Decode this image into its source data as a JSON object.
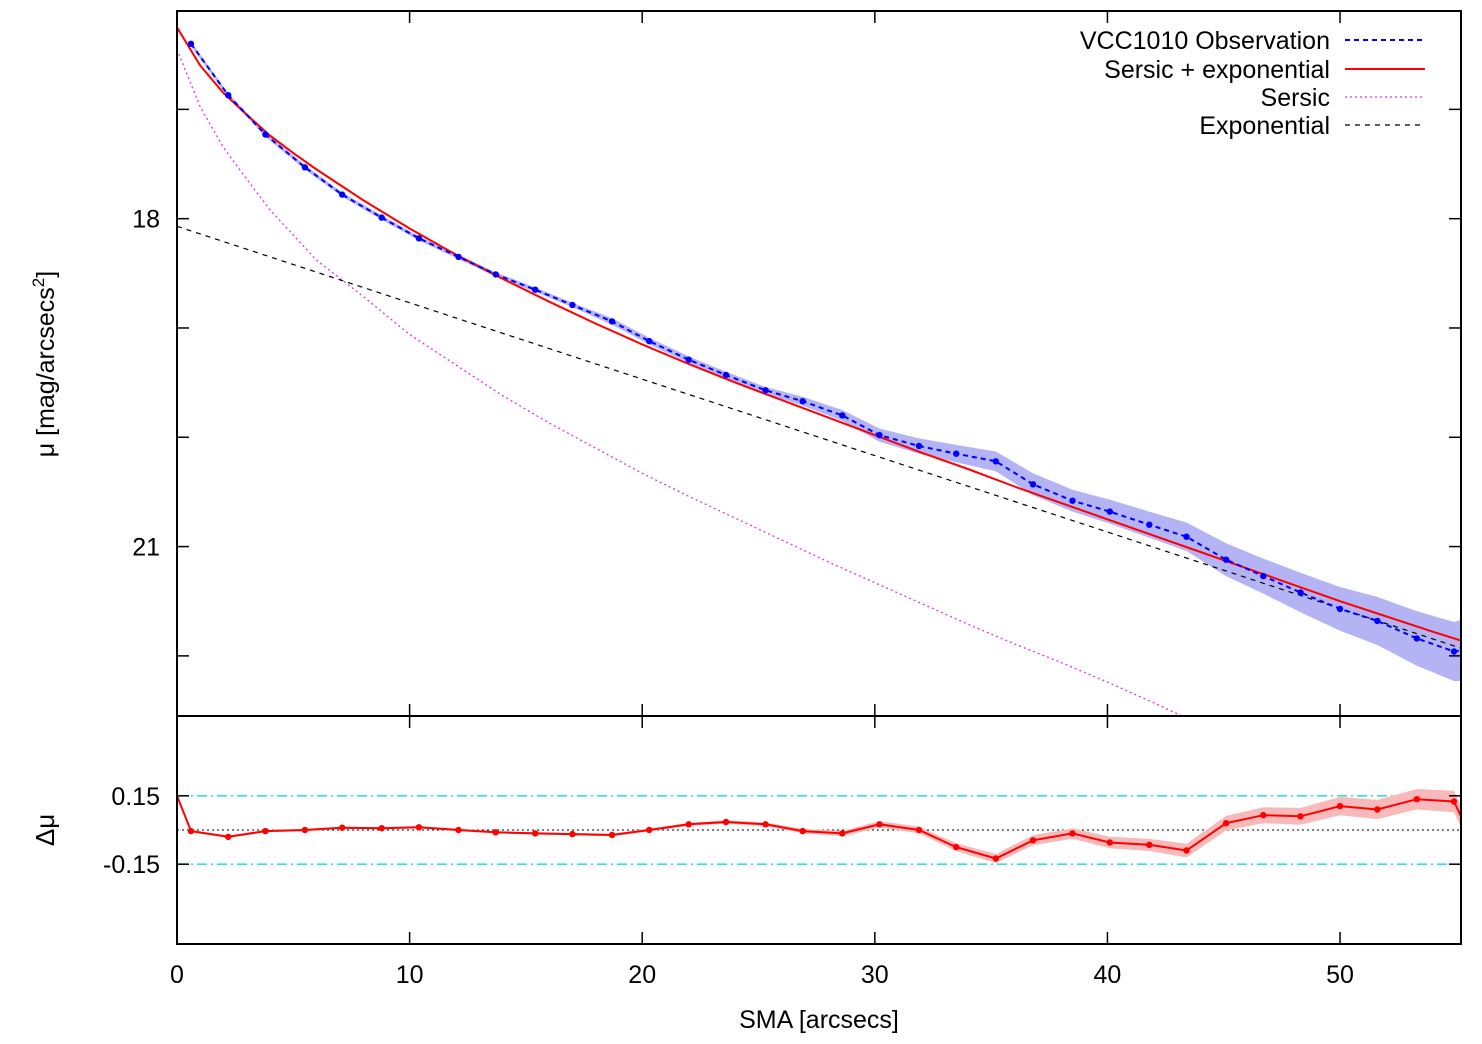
{
  "chart_data": [
    {
      "type": "line",
      "panel": "top",
      "ylabel_main": "μ [mag/arcsecs",
      "ylabel_sup": "2",
      "ylabel_tail": "]",
      "xlim": [
        0,
        55.2
      ],
      "ylim": [
        16.1,
        22.55
      ],
      "y_inverted": true,
      "xticks": [
        0,
        10,
        20,
        30,
        40,
        50
      ],
      "yticks_labeled": [
        18,
        21
      ],
      "yticks_minor": [
        17,
        19,
        20,
        22
      ],
      "legend_position": "top-right",
      "legend": [
        "VCC1010 Observation",
        "Sersic + exponential",
        "Sersic",
        "Exponential"
      ],
      "colors": {
        "observation": "#0000ff",
        "observation_band": "#b4b4f5",
        "fit": "#ff0000",
        "sersic": "#e033e0",
        "exponential": "#000000"
      },
      "series": [
        {
          "name": "VCC1010 Observation",
          "style": "dashed-dots",
          "x": [
            0.6,
            2.2,
            3.8,
            5.5,
            7.1,
            8.8,
            10.4,
            12.1,
            13.7,
            15.4,
            17.0,
            18.7,
            20.3,
            22.0,
            23.6,
            25.3,
            26.9,
            28.6,
            30.2,
            31.9,
            33.5,
            35.2,
            36.8,
            38.5,
            40.1,
            41.8,
            43.4,
            45.1,
            46.7,
            48.3,
            50.0,
            51.6,
            53.3,
            54.9,
            55.2
          ],
          "y": [
            16.4,
            16.87,
            17.23,
            17.53,
            17.78,
            17.99,
            18.18,
            18.35,
            18.51,
            18.65,
            18.79,
            18.94,
            19.12,
            19.29,
            19.43,
            19.57,
            19.67,
            19.8,
            19.98,
            20.08,
            20.15,
            20.22,
            20.43,
            20.58,
            20.68,
            20.8,
            20.91,
            21.12,
            21.27,
            21.42,
            21.57,
            21.68,
            21.84,
            21.96,
            21.95
          ],
          "err": [
            0.02,
            0.02,
            0.02,
            0.02,
            0.02,
            0.02,
            0.02,
            0.02,
            0.02,
            0.02,
            0.02,
            0.03,
            0.03,
            0.03,
            0.03,
            0.03,
            0.04,
            0.05,
            0.06,
            0.07,
            0.08,
            0.09,
            0.1,
            0.1,
            0.11,
            0.12,
            0.13,
            0.15,
            0.16,
            0.18,
            0.2,
            0.22,
            0.25,
            0.27,
            0.28
          ]
        },
        {
          "name": "Sersic + exponential",
          "style": "solid",
          "x": [
            0,
            1,
            2,
            3,
            4,
            5,
            6,
            8,
            10,
            12,
            14,
            16,
            18,
            20,
            22,
            24,
            26,
            28,
            30,
            32,
            34,
            36,
            38,
            40,
            42,
            44,
            46,
            48,
            50,
            52,
            54,
            55.2
          ],
          "y": [
            16.25,
            16.6,
            16.85,
            17.05,
            17.24,
            17.4,
            17.55,
            17.83,
            18.09,
            18.33,
            18.55,
            18.76,
            18.96,
            19.15,
            19.33,
            19.5,
            19.66,
            19.82,
            19.98,
            20.14,
            20.29,
            20.45,
            20.6,
            20.75,
            20.9,
            21.05,
            21.2,
            21.35,
            21.5,
            21.64,
            21.78,
            21.86
          ]
        },
        {
          "name": "Sersic",
          "style": "dotted",
          "x": [
            0,
            1,
            2,
            3,
            4,
            5,
            6,
            8,
            10,
            12,
            14,
            16,
            18,
            20,
            22,
            24,
            26,
            28,
            30,
            32,
            34,
            36,
            38,
            40,
            42,
            43.2
          ],
          "y": [
            16.45,
            16.98,
            17.35,
            17.64,
            17.92,
            18.15,
            18.38,
            18.71,
            19.06,
            19.34,
            19.62,
            19.87,
            20.1,
            20.33,
            20.54,
            20.74,
            20.94,
            21.14,
            21.33,
            21.52,
            21.71,
            21.89,
            22.06,
            22.24,
            22.43,
            22.55
          ]
        },
        {
          "name": "Exponential",
          "style": "dashed",
          "x": [
            0,
            55.2
          ],
          "y": [
            18.07,
            21.93
          ]
        }
      ]
    },
    {
      "type": "line",
      "panel": "bottom",
      "ylabel": "Δμ",
      "xlabel": "SMA [arcsecs]",
      "xlim": [
        0,
        55.2
      ],
      "ylim": [
        -0.5,
        0.5
      ],
      "xticks": [
        0,
        10,
        20,
        30,
        40,
        50
      ],
      "yticks": [
        0.15,
        -0.15
      ],
      "ytick_labels": [
        "0.15",
        "-0.15"
      ],
      "reference_lines": [
        {
          "y": 0.15,
          "style": "dash-dot",
          "color": "#33dddd"
        },
        {
          "y": -0.15,
          "style": "dash-dot",
          "color": "#33dddd"
        },
        {
          "y": 0,
          "style": "dotted",
          "color": "#000000"
        }
      ],
      "colors": {
        "residual": "#ff0000",
        "residual_band": "#f7b9b9"
      },
      "series": [
        {
          "x": [
            0,
            0.6,
            2.2,
            3.8,
            5.5,
            7.1,
            8.8,
            10.4,
            12.1,
            13.7,
            15.4,
            17.0,
            18.7,
            20.3,
            22.0,
            23.6,
            25.3,
            26.9,
            28.6,
            30.2,
            31.9,
            33.5,
            35.2,
            36.8,
            38.5,
            40.1,
            41.8,
            43.4,
            45.1,
            46.7,
            48.3,
            50.0,
            51.6,
            53.3,
            54.9,
            55.2
          ],
          "y": [
            0.15,
            -0.005,
            -0.03,
            -0.005,
            0.0,
            0.01,
            0.008,
            0.012,
            0.0,
            -0.01,
            -0.015,
            -0.018,
            -0.022,
            0.0,
            0.025,
            0.035,
            0.025,
            -0.005,
            -0.015,
            0.025,
            0.0,
            -0.075,
            -0.125,
            -0.045,
            -0.015,
            -0.055,
            -0.065,
            -0.09,
            0.03,
            0.065,
            0.06,
            0.105,
            0.09,
            0.135,
            0.125,
            0.06
          ],
          "err": [
            0.0,
            0.005,
            0.005,
            0.005,
            0.005,
            0.005,
            0.005,
            0.005,
            0.005,
            0.005,
            0.005,
            0.005,
            0.006,
            0.006,
            0.007,
            0.008,
            0.008,
            0.01,
            0.012,
            0.014,
            0.015,
            0.017,
            0.02,
            0.022,
            0.023,
            0.025,
            0.027,
            0.03,
            0.032,
            0.035,
            0.037,
            0.04,
            0.042,
            0.045,
            0.047,
            0.048
          ]
        }
      ]
    }
  ]
}
